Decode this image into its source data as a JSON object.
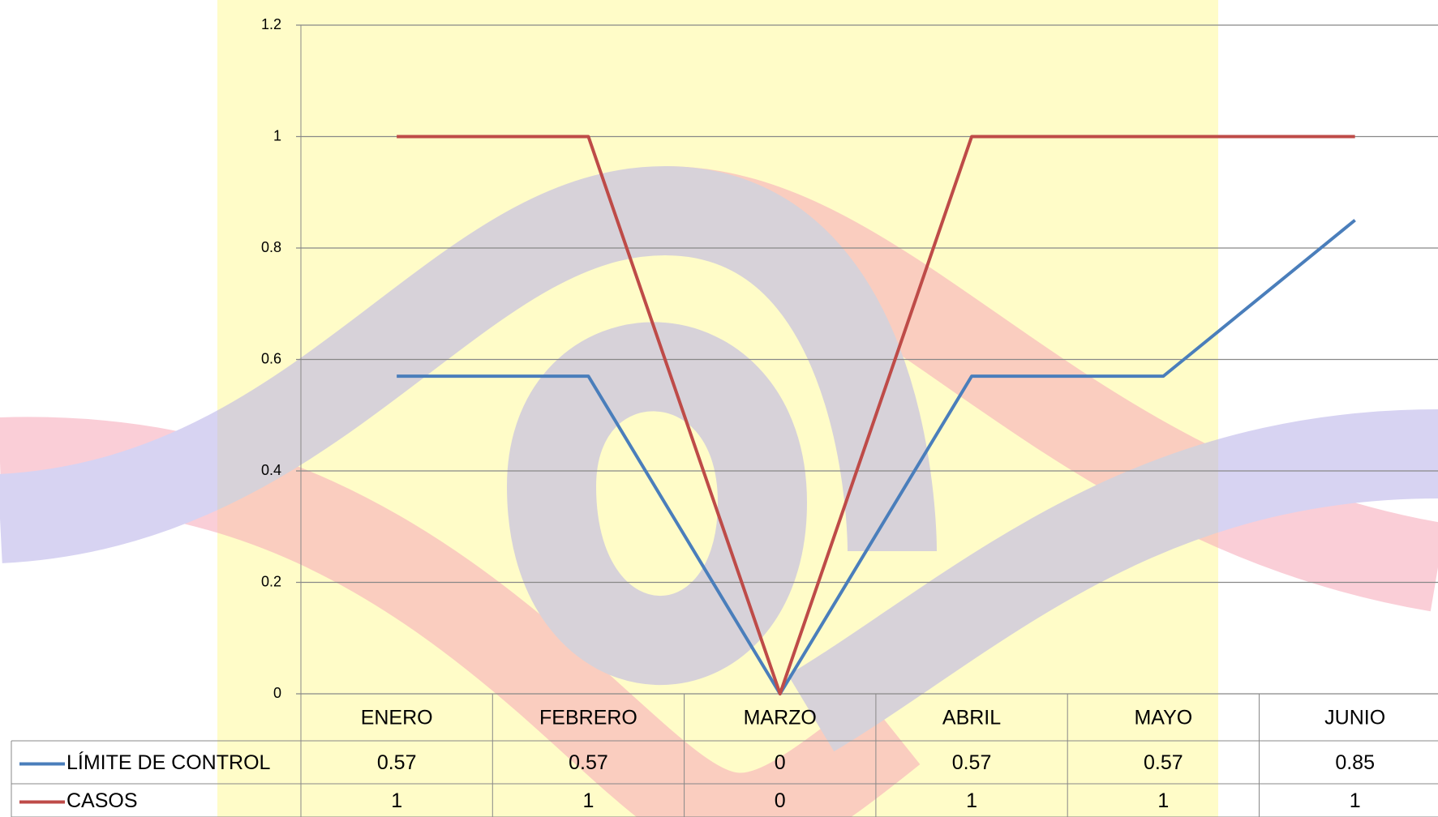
{
  "chart_data": {
    "type": "line",
    "categories": [
      "ENERO",
      "FEBRERO",
      "MARZO",
      "ABRIL",
      "MAYO",
      "JUNIO"
    ],
    "series": [
      {
        "name": "LÍMITE DE CONTROL",
        "color": "#4a7ebb",
        "values": [
          0.57,
          0.57,
          0,
          0.57,
          0.57,
          0.85
        ]
      },
      {
        "name": "CASOS",
        "color": "#be4b48",
        "values": [
          1,
          1,
          0,
          1,
          1,
          1
        ]
      }
    ],
    "ylim": [
      0,
      1.2
    ],
    "yticks": [
      0,
      0.2,
      0.4,
      0.6,
      0.8,
      1,
      1.2
    ],
    "grid": true,
    "data_table": true
  }
}
